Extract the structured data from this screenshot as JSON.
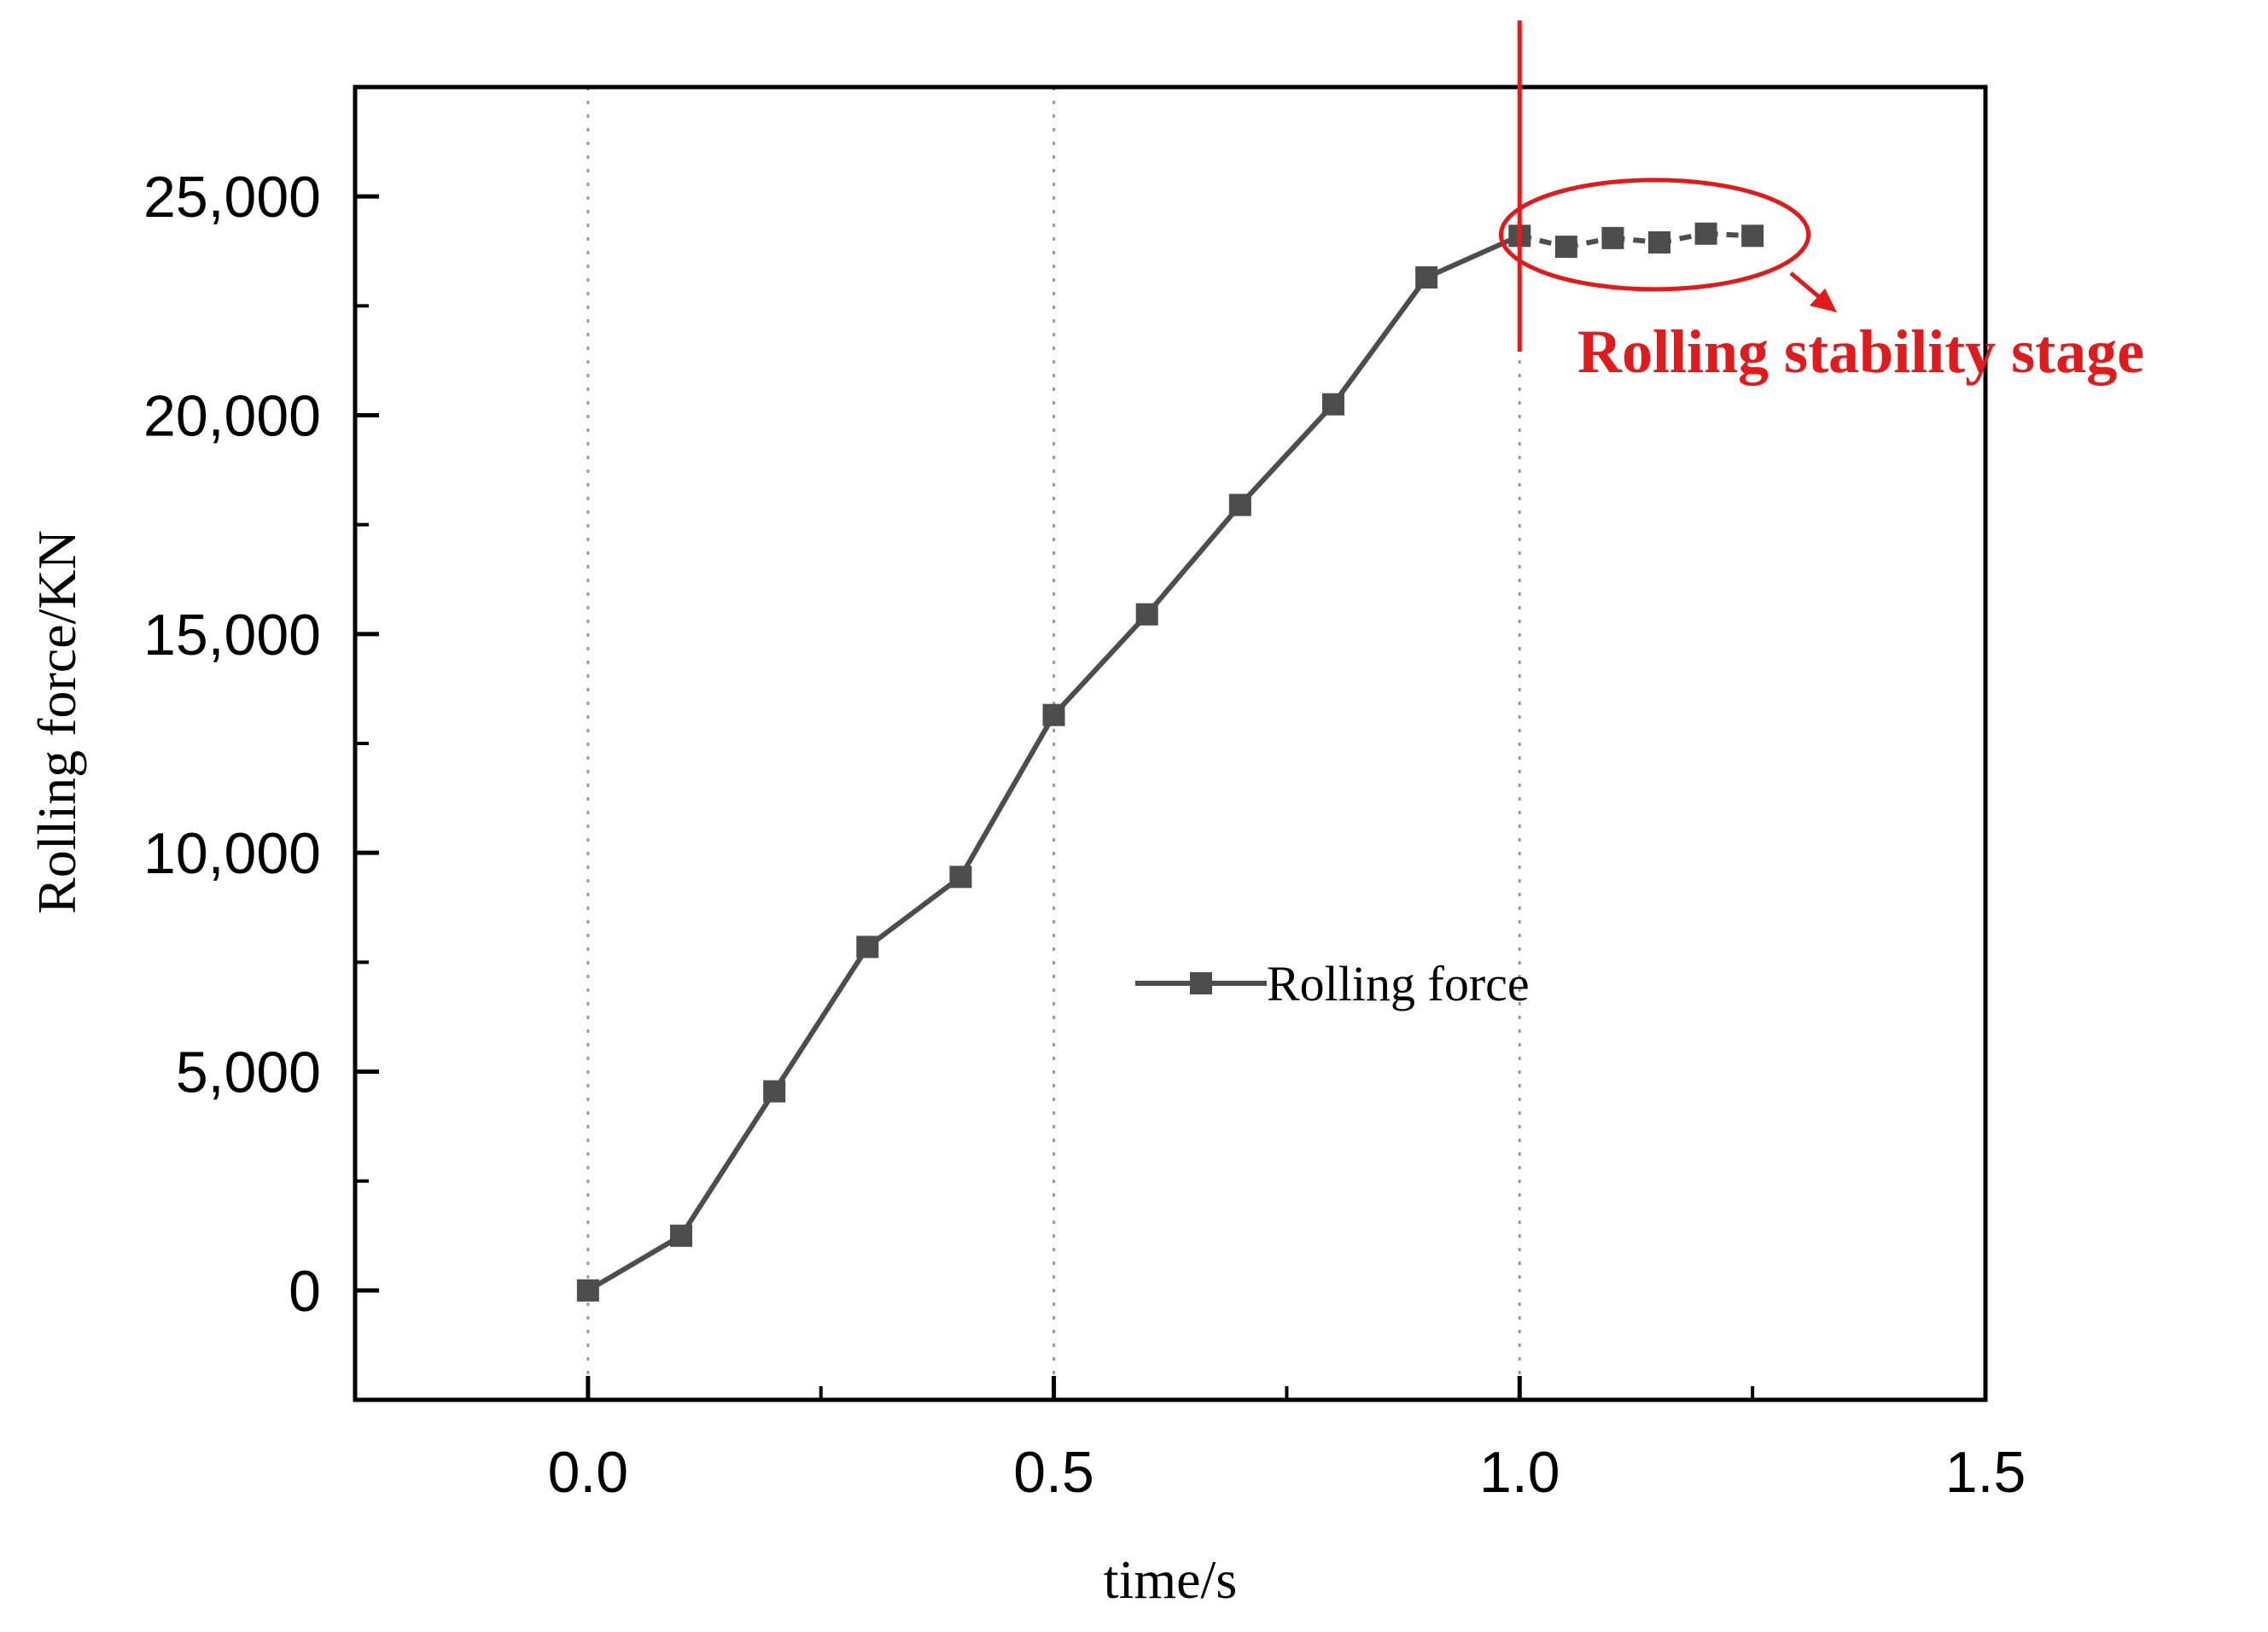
{
  "chart_data": {
    "type": "line",
    "xlabel": "time/s",
    "ylabel": "Rolling force/KN",
    "xlim": [
      -0.25,
      1.5
    ],
    "ylim": [
      -2500,
      27500
    ],
    "x_ticks": [
      0.0,
      0.5,
      1.0,
      1.5
    ],
    "x_tick_labels": [
      "0.0",
      "0.5",
      "1.0",
      "1.5"
    ],
    "y_ticks": [
      0,
      5000,
      10000,
      15000,
      20000,
      25000
    ],
    "y_tick_labels": [
      "0",
      "5,000",
      "10,000",
      "15,000",
      "20,000",
      "25,000"
    ],
    "grid": "vertical dotted lines at 0.0, 0.5, 1.0",
    "legend_position": "center-right",
    "series": [
      {
        "name": "Rolling force",
        "color": "#4d4d4d",
        "marker": "square",
        "x": [
          0.0,
          0.1,
          0.2,
          0.3,
          0.4,
          0.5,
          0.6,
          0.7,
          0.8,
          0.9,
          1.0,
          1.05,
          1.1,
          1.15,
          1.2,
          1.25
        ],
        "y": [
          0,
          1250,
          4550,
          7850,
          9450,
          13150,
          15450,
          17950,
          20250,
          23150,
          24100,
          23850,
          24050,
          23950,
          24150,
          24100
        ]
      }
    ],
    "annotations": [
      {
        "text": "Rolling stability stage",
        "color": "#e31a1c",
        "marker_line_x": 1.0
      }
    ]
  }
}
